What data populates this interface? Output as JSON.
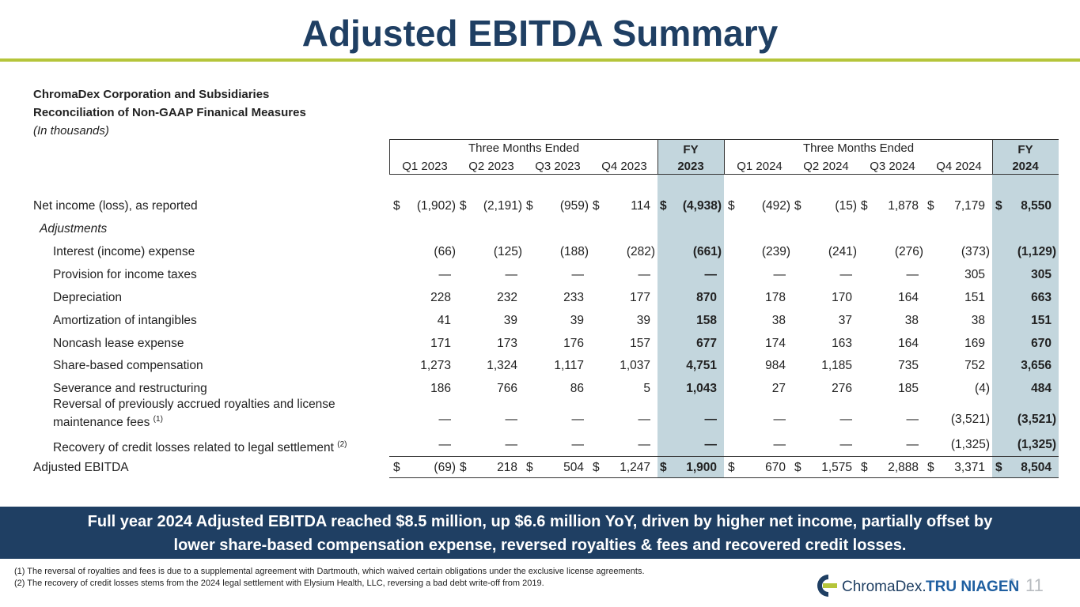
{
  "title": "Adjusted EBITDA Summary",
  "company": "ChromaDex Corporation and Subsidiaries",
  "subtitle": "Reconciliation of Non-GAAP Finanical Measures",
  "units": "(In thousands)",
  "header": {
    "group_2023": "Three Months Ended",
    "group_2024": "Three Months Ended",
    "fy_2023_top": "FY",
    "fy_2023_bottom": "2023",
    "fy_2024_top": "FY",
    "fy_2024_bottom": "2024",
    "quarters_2023": [
      "Q1 2023",
      "Q2 2023",
      "Q3 2023",
      "Q4 2023"
    ],
    "quarters_2024": [
      "Q1 2024",
      "Q2 2024",
      "Q3 2024",
      "Q4 2024"
    ]
  },
  "dollar_sign": "$",
  "rows": [
    {
      "label": "Net income (loss), as reported",
      "values": [
        "(1,902)",
        "(2,191)",
        "(959)",
        "114",
        "(4,938)",
        "(492)",
        "(15)",
        "1,878",
        "7,179",
        "8,550"
      ]
    },
    {
      "label": "Adjustments",
      "values": []
    },
    {
      "label": "Interest (income) expense",
      "values": [
        "(66)",
        "(125)",
        "(188)",
        "(282)",
        "(661)",
        "(239)",
        "(241)",
        "(276)",
        "(373)",
        "(1,129)"
      ]
    },
    {
      "label": "Provision for income taxes",
      "values": [
        "—",
        "—",
        "—",
        "—",
        "—",
        "—",
        "—",
        "—",
        "305",
        "305"
      ]
    },
    {
      "label": "Depreciation",
      "values": [
        "228",
        "232",
        "233",
        "177",
        "870",
        "178",
        "170",
        "164",
        "151",
        "663"
      ]
    },
    {
      "label": "Amortization of intangibles",
      "values": [
        "41",
        "39",
        "39",
        "39",
        "158",
        "38",
        "37",
        "38",
        "38",
        "151"
      ]
    },
    {
      "label": "Noncash lease expense",
      "values": [
        "171",
        "173",
        "176",
        "157",
        "677",
        "174",
        "163",
        "164",
        "169",
        "670"
      ]
    },
    {
      "label": "Share-based compensation",
      "values": [
        "1,273",
        "1,324",
        "1,117",
        "1,037",
        "4,751",
        "984",
        "1,185",
        "735",
        "752",
        "3,656"
      ]
    },
    {
      "label": "Severance and restructuring",
      "values": [
        "186",
        "766",
        "86",
        "5",
        "1,043",
        "27",
        "276",
        "185",
        "(4)",
        "484"
      ]
    },
    {
      "label_line1": "Reversal of previously accrued royalties and license",
      "label": "maintenance fees",
      "note": "(1)",
      "values": [
        "—",
        "—",
        "—",
        "—",
        "—",
        "—",
        "—",
        "—",
        "(3,521)",
        "(3,521)"
      ]
    },
    {
      "label": "Recovery of credit losses related to legal settlement",
      "note": "(2)",
      "values": [
        "—",
        "—",
        "—",
        "—",
        "—",
        "—",
        "—",
        "—",
        "(1,325)",
        "(1,325)"
      ]
    },
    {
      "label": "Adjusted EBITDA",
      "values": [
        "(69)",
        "218",
        "504",
        "1,247",
        "1,900",
        "670",
        "1,575",
        "2,888",
        "3,371",
        "8,504"
      ]
    }
  ],
  "banner_line1": "Full year 2024 Adjusted EBITDA reached $8.5 million, up $6.6 million YoY, driven by higher net income, partially offset by",
  "banner_line2": "lower share-based compensation expense, reversed royalties & fees and recovered credit losses.",
  "footnote1": "(1) The reversal of royalties and fees is due to a supplemental agreement with Dartmouth, which waived certain obligations under the exclusive license agreements.",
  "footnote2": "(2) The recovery of credit losses stems from the 2024 legal settlement with Elysium Health, LLC, reversing a bad debt write-off from 2019.",
  "logo": {
    "chromadex": "ChromaDex.",
    "tru_niagen": "TRU NIAGEN",
    "mark": "®"
  },
  "page_number": "11",
  "colors": {
    "navy": "#1f3f63",
    "green": "#b5c53a",
    "fy_band": "#c3d6dd"
  }
}
